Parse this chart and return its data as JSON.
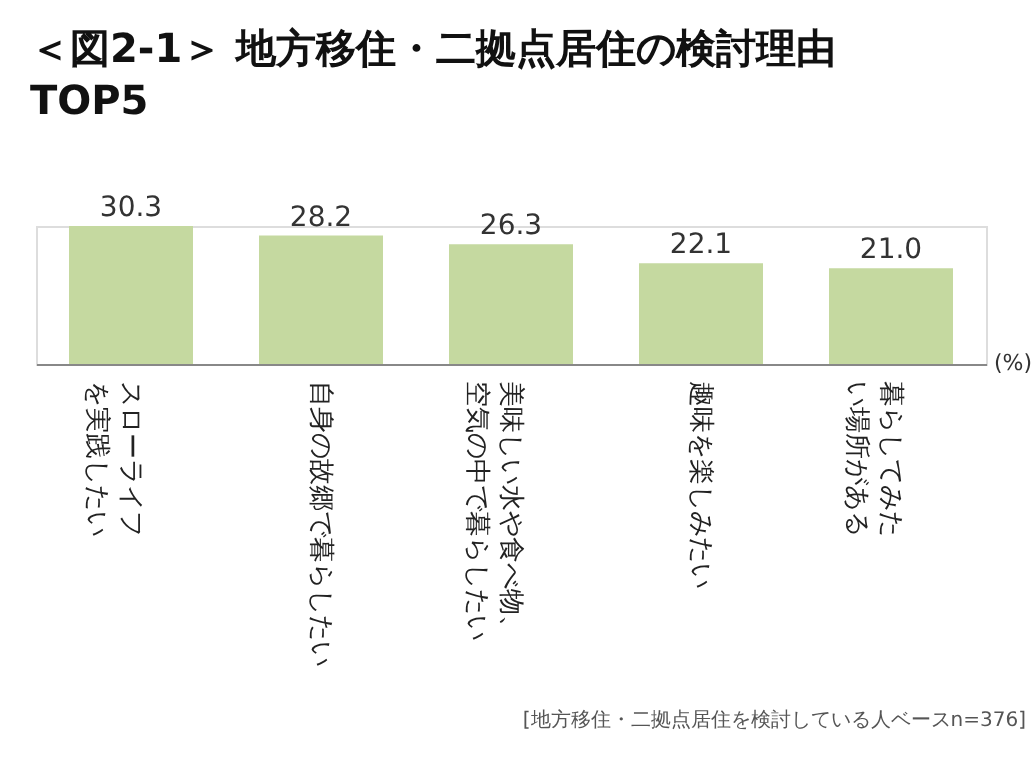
{
  "chart_data": {
    "type": "bar",
    "title": "＜図2-1＞ 地方移住・二拠点居住の検討理由 TOP5",
    "categories": [
      "スローライフを実践したい",
      "自身の故郷で暮らしたい",
      "美味しい水や食べ物、空気の中で暮らしたい",
      "趣味を楽しみたい",
      "暮らしてみたい場所がある"
    ],
    "values": [
      30.3,
      28.2,
      26.3,
      22.1,
      21.0
    ],
    "value_labels": [
      "30.3",
      "28.2",
      "26.3",
      "22.1",
      "21.0"
    ],
    "color": "#c5d9a0",
    "ylabel": "(%)",
    "annotations": [
      "[地方移住・二拠点居住を検討している人ベースn=376]"
    ]
  }
}
